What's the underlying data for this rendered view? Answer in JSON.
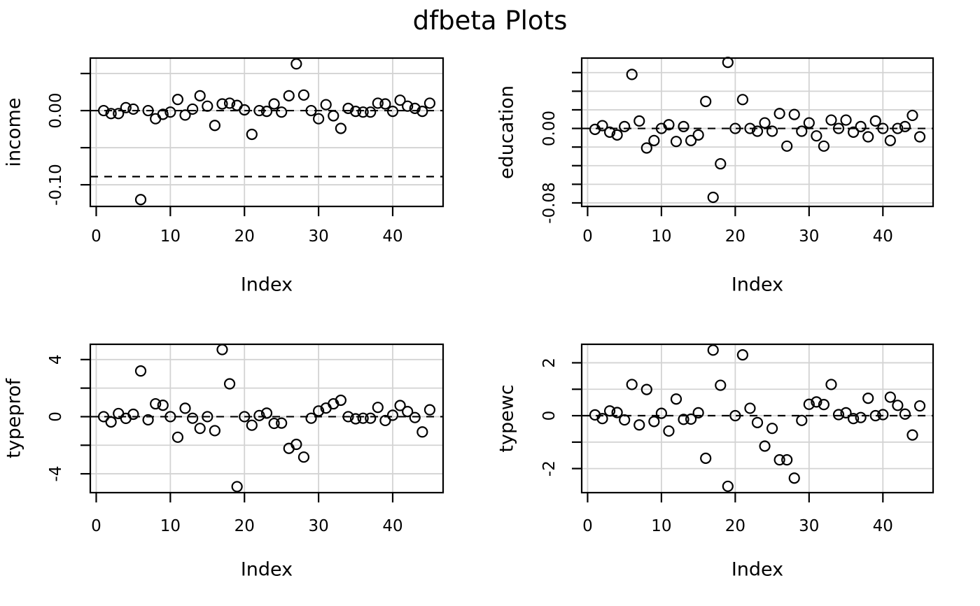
{
  "title": "dfbeta Plots",
  "colors": {
    "background": "#ffffff",
    "grid": "#d3d3d3",
    "axis": "#000000",
    "text": "#000000",
    "marker": "#000000",
    "reference_line": "#000000"
  },
  "chart_data": [
    {
      "type": "scatter",
      "panel": "top-left",
      "ylabel": "income",
      "xlabel": "Index",
      "marker": {
        "shape": "open-circle",
        "color": "#000000",
        "radius": 7
      },
      "grid": true,
      "legend": "none",
      "xlim": [
        -0.8,
        46.8
      ],
      "ylim": [
        -0.1292,
        0.0708
      ],
      "xticks": [
        0,
        10,
        20,
        30,
        40
      ],
      "xtick_labels": [
        "0",
        "10",
        "20",
        "30",
        "40"
      ],
      "yticks": [
        0.05,
        0.0,
        -0.05,
        -0.1
      ],
      "ytick_labels": [
        "",
        "0.00",
        "",
        "-0.10"
      ],
      "reference_lines": [
        {
          "y": 0.0,
          "style": "dashed"
        },
        {
          "y": -0.089,
          "style": "dashed"
        }
      ],
      "x": [
        1,
        2,
        3,
        4,
        5,
        6,
        7,
        8,
        9,
        10,
        11,
        12,
        13,
        14,
        15,
        16,
        17,
        18,
        19,
        20,
        21,
        22,
        23,
        24,
        25,
        26,
        27,
        28,
        29,
        30,
        31,
        32,
        33,
        34,
        35,
        36,
        37,
        38,
        39,
        40,
        41,
        42,
        43,
        44,
        45
      ],
      "y": [
        0.0,
        -0.004,
        -0.004,
        0.004,
        0.002,
        -0.12,
        0.0,
        -0.011,
        -0.005,
        -0.002,
        0.015,
        -0.006,
        0.002,
        0.02,
        0.006,
        -0.02,
        0.009,
        0.01,
        0.007,
        0.001,
        -0.032,
        0.0,
        -0.001,
        0.009,
        -0.002,
        0.02,
        0.063,
        0.021,
        0.0,
        -0.011,
        0.008,
        -0.007,
        -0.024,
        0.003,
        -0.001,
        -0.002,
        -0.002,
        0.01,
        0.009,
        -0.001,
        0.014,
        0.006,
        0.003,
        -0.001,
        0.01
      ]
    },
    {
      "type": "scatter",
      "panel": "top-right",
      "ylabel": "education",
      "xlabel": "Index",
      "marker": {
        "shape": "open-circle",
        "color": "#000000",
        "radius": 7
      },
      "grid": true,
      "legend": "none",
      "xlim": [
        -0.8,
        46.8
      ],
      "ylim": [
        -0.0838,
        0.0756
      ],
      "xticks": [
        0,
        10,
        20,
        30,
        40
      ],
      "xtick_labels": [
        "0",
        "10",
        "20",
        "30",
        "40"
      ],
      "yticks": [
        0.06,
        0.04,
        0.02,
        0.0,
        -0.02,
        -0.04,
        -0.06,
        -0.08
      ],
      "ytick_labels": [
        "",
        "",
        "",
        "0.00",
        "",
        "",
        "",
        "-0.08"
      ],
      "reference_lines": [
        {
          "y": 0.0,
          "style": "dashed"
        }
      ],
      "x": [
        1,
        2,
        3,
        4,
        5,
        6,
        7,
        8,
        9,
        10,
        11,
        12,
        13,
        14,
        15,
        16,
        17,
        18,
        19,
        20,
        21,
        22,
        23,
        24,
        25,
        26,
        27,
        28,
        29,
        30,
        31,
        32,
        33,
        34,
        35,
        36,
        37,
        38,
        39,
        40,
        41,
        42,
        43,
        44,
        45
      ],
      "y": [
        -0.001,
        0.003,
        -0.004,
        -0.007,
        0.002,
        0.058,
        0.008,
        -0.021,
        -0.013,
        0.0,
        0.004,
        -0.014,
        0.002,
        -0.013,
        -0.007,
        0.029,
        -0.074,
        -0.038,
        0.071,
        0.0,
        0.031,
        0.0,
        -0.003,
        0.006,
        -0.003,
        0.016,
        -0.019,
        0.015,
        -0.003,
        0.006,
        -0.008,
        -0.019,
        0.009,
        0.0,
        0.009,
        -0.004,
        0.002,
        -0.009,
        0.008,
        0.0,
        -0.013,
        0.0,
        0.002,
        0.014,
        -0.009
      ]
    },
    {
      "type": "scatter",
      "panel": "bottom-left",
      "ylabel": "typeprof",
      "xlabel": "Index",
      "marker": {
        "shape": "open-circle",
        "color": "#000000",
        "radius": 7
      },
      "grid": true,
      "legend": "none",
      "xlim": [
        -0.8,
        46.8
      ],
      "ylim": [
        -5.32,
        5.07
      ],
      "xticks": [
        0,
        10,
        20,
        30,
        40
      ],
      "xtick_labels": [
        "0",
        "10",
        "20",
        "30",
        "40"
      ],
      "yticks": [
        4,
        2,
        0,
        -2,
        -4
      ],
      "ytick_labels": [
        "4",
        "",
        "0",
        "",
        "-4"
      ],
      "reference_lines": [
        {
          "y": 0.0,
          "style": "dashed"
        }
      ],
      "x": [
        1,
        2,
        3,
        4,
        5,
        6,
        7,
        8,
        9,
        10,
        11,
        12,
        13,
        14,
        15,
        16,
        17,
        18,
        19,
        20,
        21,
        22,
        23,
        24,
        25,
        26,
        27,
        28,
        29,
        30,
        31,
        32,
        33,
        34,
        35,
        36,
        37,
        38,
        39,
        40,
        41,
        42,
        43,
        44,
        45
      ],
      "y": [
        0.0,
        -0.37,
        0.22,
        -0.12,
        0.17,
        3.2,
        -0.22,
        0.9,
        0.8,
        0.0,
        -1.44,
        0.59,
        -0.11,
        -0.82,
        0.0,
        -0.98,
        4.7,
        2.3,
        -4.9,
        0.0,
        -0.6,
        0.08,
        0.25,
        -0.47,
        -0.45,
        -2.22,
        -1.94,
        -2.83,
        -0.11,
        0.4,
        0.6,
        0.9,
        1.15,
        0.0,
        -0.15,
        -0.11,
        -0.11,
        0.65,
        -0.27,
        0.1,
        0.78,
        0.36,
        -0.06,
        -1.07,
        0.48
      ]
    },
    {
      "type": "scatter",
      "panel": "bottom-right",
      "ylabel": "typewc",
      "xlabel": "Index",
      "marker": {
        "shape": "open-circle",
        "color": "#000000",
        "radius": 7
      },
      "grid": true,
      "legend": "none",
      "xlim": [
        -0.8,
        46.8
      ],
      "ylim": [
        -2.91,
        2.7
      ],
      "xticks": [
        0,
        10,
        20,
        30,
        40
      ],
      "xtick_labels": [
        "0",
        "10",
        "20",
        "30",
        "40"
      ],
      "yticks": [
        2,
        1,
        0,
        -1,
        -2
      ],
      "ytick_labels": [
        "2",
        "",
        "0",
        "",
        "-2"
      ],
      "reference_lines": [
        {
          "y": 0.0,
          "style": "dashed"
        }
      ],
      "x": [
        1,
        2,
        3,
        4,
        5,
        6,
        7,
        8,
        9,
        10,
        11,
        12,
        13,
        14,
        15,
        16,
        17,
        18,
        19,
        20,
        21,
        22,
        23,
        24,
        25,
        26,
        27,
        28,
        29,
        30,
        31,
        32,
        33,
        34,
        35,
        36,
        37,
        38,
        39,
        40,
        41,
        42,
        43,
        44,
        45
      ],
      "y": [
        0.03,
        -0.11,
        0.18,
        0.12,
        -0.16,
        1.18,
        -0.35,
        0.99,
        -0.22,
        0.09,
        -0.58,
        0.63,
        -0.14,
        -0.13,
        0.11,
        -1.61,
        2.48,
        1.15,
        -2.67,
        0.0,
        2.3,
        0.28,
        -0.26,
        -1.15,
        -0.48,
        -1.67,
        -1.67,
        -2.36,
        -0.18,
        0.43,
        0.52,
        0.42,
        1.18,
        0.04,
        0.11,
        -0.11,
        -0.07,
        0.66,
        0.0,
        0.04,
        0.7,
        0.39,
        0.06,
        -0.73,
        0.37
      ]
    }
  ]
}
